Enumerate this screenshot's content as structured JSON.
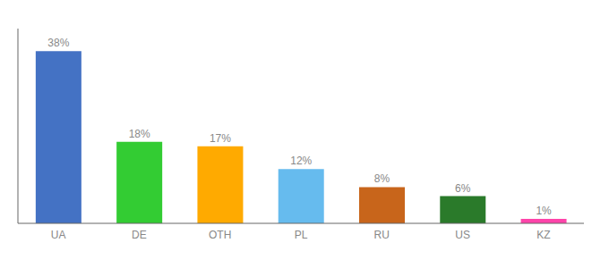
{
  "chart_data": {
    "type": "bar",
    "categories": [
      "UA",
      "DE",
      "OTH",
      "PL",
      "RU",
      "US",
      "KZ"
    ],
    "values": [
      38,
      18,
      17,
      12,
      8,
      6,
      1
    ],
    "value_labels": [
      "38%",
      "18%",
      "17%",
      "12%",
      "8%",
      "6%",
      "1%"
    ],
    "colors": [
      "#4472c4",
      "#33cc33",
      "#ffaa00",
      "#66bbee",
      "#c8651b",
      "#2a7a2a",
      "#ff44aa"
    ],
    "ylim": [
      0,
      43
    ],
    "data_labels": true,
    "tick_labels": "x",
    "grid": false
  }
}
